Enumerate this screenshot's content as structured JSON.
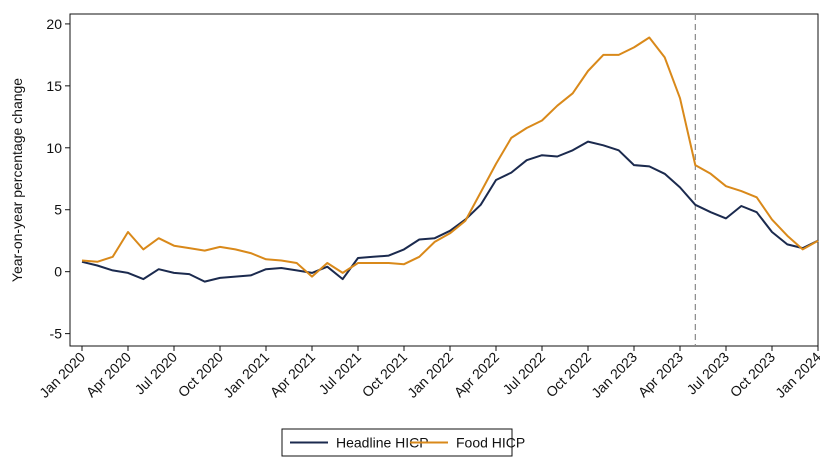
{
  "chart_data": {
    "type": "line",
    "y_label": "Year-on-year percentage change",
    "categories": [
      "Jan 2020",
      null,
      null,
      "Apr 2020",
      null,
      null,
      "Jul 2020",
      null,
      null,
      "Oct 2020",
      null,
      null,
      "Jan 2021",
      null,
      null,
      "Apr 2021",
      null,
      null,
      "Jul 2021",
      null,
      null,
      "Oct 2021",
      null,
      null,
      "Jan 2022",
      null,
      null,
      "Apr 2022",
      null,
      null,
      "Jul 2022",
      null,
      null,
      "Oct 2022",
      null,
      null,
      "Jan 2023",
      null,
      null,
      "Apr 2023",
      null,
      null,
      "Jul 2023",
      null,
      null,
      "Oct 2023",
      null,
      null,
      "Jan 2024"
    ],
    "series": [
      {
        "name": "Headline HICP",
        "color": "#1b2a4e",
        "values": [
          0.8,
          0.5,
          0.1,
          -0.1,
          -0.6,
          0.2,
          -0.1,
          -0.2,
          -0.8,
          -0.5,
          -0.4,
          -0.3,
          0.2,
          0.3,
          0.1,
          -0.1,
          0.4,
          -0.6,
          1.1,
          1.2,
          1.3,
          1.8,
          2.6,
          2.7,
          3.3,
          4.2,
          5.4,
          7.4,
          8.0,
          9.0,
          9.4,
          9.3,
          9.8,
          10.5,
          10.2,
          9.8,
          8.6,
          8.5,
          7.9,
          6.8,
          5.4,
          4.8,
          4.3,
          5.3,
          4.8,
          3.2,
          2.2,
          1.9,
          2.5
        ]
      },
      {
        "name": "Food HICP",
        "color": "#d9891a",
        "values": [
          0.9,
          0.8,
          1.2,
          3.2,
          1.8,
          2.7,
          2.1,
          1.9,
          1.7,
          2.0,
          1.8,
          1.5,
          1.0,
          0.9,
          0.7,
          -0.4,
          0.7,
          -0.1,
          0.7,
          0.7,
          0.7,
          0.6,
          1.2,
          2.4,
          3.1,
          4.1,
          6.4,
          8.7,
          10.8,
          11.6,
          12.2,
          13.4,
          14.4,
          16.2,
          17.5,
          17.5,
          18.1,
          18.9,
          17.3,
          14.0,
          8.6,
          7.9,
          6.9,
          6.5,
          6.0,
          4.2,
          2.9,
          1.8,
          2.5
        ]
      }
    ],
    "vline_index": 40,
    "ylim": [
      -6,
      20.8
    ],
    "yticks": [
      -5,
      0,
      5,
      10,
      15,
      20
    ],
    "legend": "bottom"
  }
}
